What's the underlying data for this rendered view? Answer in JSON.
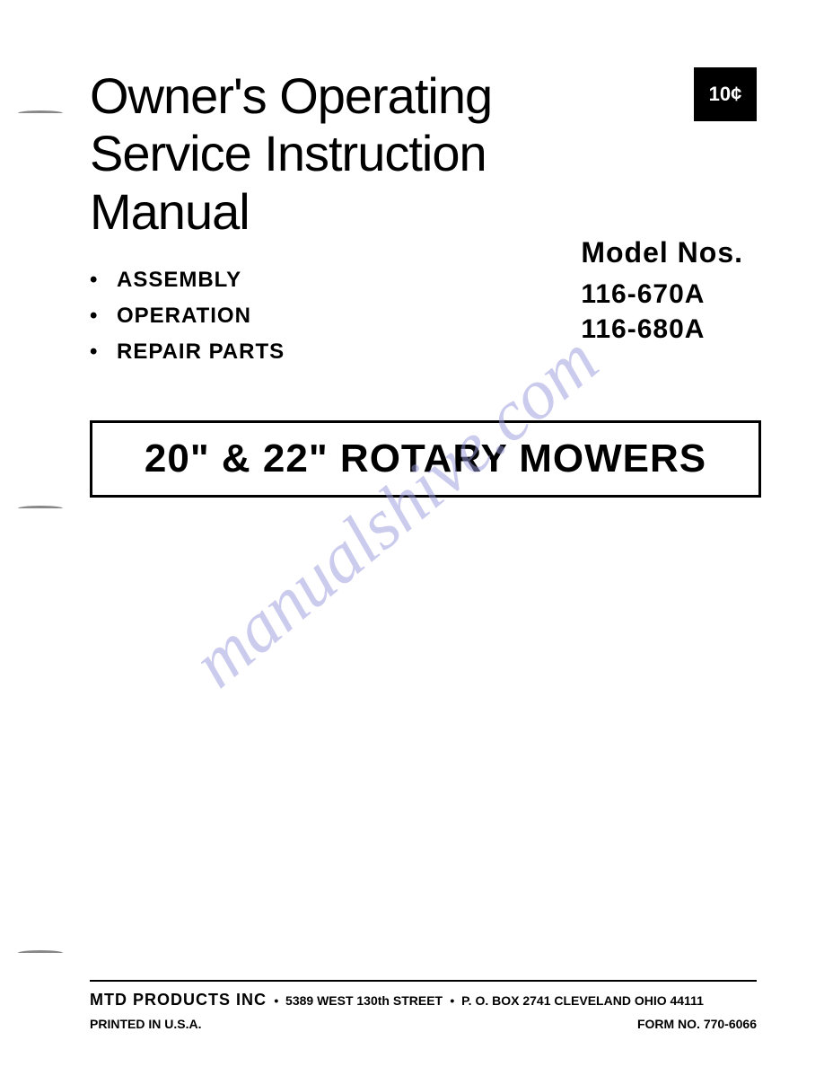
{
  "price_badge": "10¢",
  "main_title": {
    "line1": "Owner's Operating",
    "line2": "Service Instruction",
    "line3": "Manual"
  },
  "bullets": [
    "ASSEMBLY",
    "OPERATION",
    "REPAIR PARTS"
  ],
  "model_section": {
    "heading": "Model Nos.",
    "model1": "116-670A",
    "model2": "116-680A"
  },
  "product_title": "20\" & 22\" ROTARY MOWERS",
  "watermark": "manualshive.com",
  "footer": {
    "company": "MTD PRODUCTS INC",
    "address_street": "5389 WEST 130th STREET",
    "address_pobox": "P. O. BOX 2741 CLEVELAND OHIO 44111",
    "printed": "PRINTED IN U.S.A.",
    "form": "FORM NO. 770-6066"
  },
  "colors": {
    "background": "#ffffff",
    "text": "#000000",
    "badge_bg": "#000000",
    "badge_text": "#ffffff",
    "watermark": "#9999dd",
    "border": "#000000"
  },
  "typography": {
    "title_fontsize": 56,
    "bullet_fontsize": 24,
    "model_heading_fontsize": 32,
    "model_number_fontsize": 30,
    "product_title_fontsize": 44,
    "footer_company_fontsize": 18,
    "footer_text_fontsize": 14,
    "badge_fontsize": 22
  }
}
